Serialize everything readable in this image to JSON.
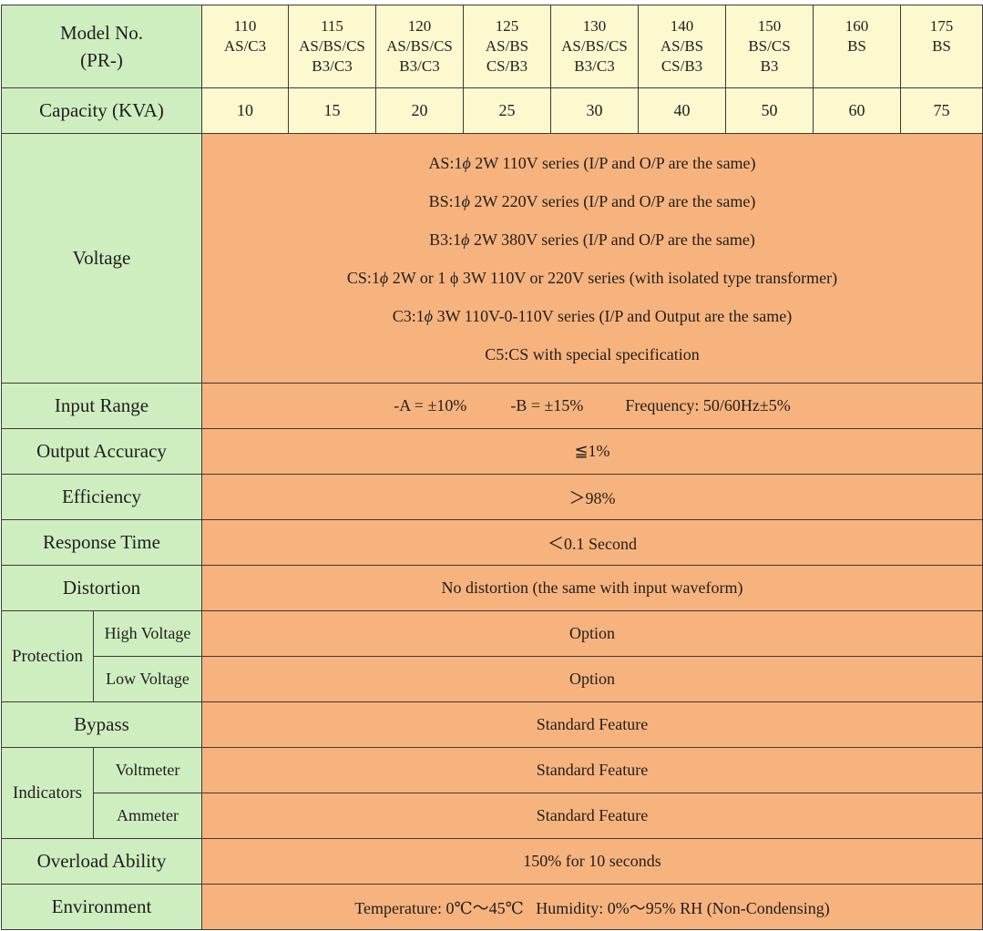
{
  "header": {
    "model_label_line1": "Model No.",
    "model_label_line2": "(PR-)",
    "models": [
      {
        "line1": "110",
        "line2": "AS/C3",
        "line3": ""
      },
      {
        "line1": "115",
        "line2": "AS/BS/CS",
        "line3": "B3/C3"
      },
      {
        "line1": "120",
        "line2": "AS/BS/CS",
        "line3": "B3/C3"
      },
      {
        "line1": "125",
        "line2": "AS/BS",
        "line3": "CS/B3"
      },
      {
        "line1": "130",
        "line2": "AS/BS/CS",
        "line3": "B3/C3"
      },
      {
        "line1": "140",
        "line2": "AS/BS",
        "line3": "CS/B3"
      },
      {
        "line1": "150",
        "line2": "BS/CS",
        "line3": "B3"
      },
      {
        "line1": "160",
        "line2": "BS",
        "line3": ""
      },
      {
        "line1": "175",
        "line2": "BS",
        "line3": ""
      }
    ]
  },
  "capacity": {
    "label": "Capacity (KVA)",
    "values": [
      "10",
      "15",
      "20",
      "25",
      "30",
      "40",
      "50",
      "60",
      "75"
    ]
  },
  "voltage": {
    "label": "Voltage",
    "lines": [
      {
        "prefix": "AS:1",
        "suffix": "2W 110V series (I/P and O/P are the same)"
      },
      {
        "prefix": "BS:1",
        "suffix": "2W 220V series (I/P and O/P are the same)"
      },
      {
        "prefix": "B3:1",
        "suffix": "2W 380V series (I/P and O/P are the same)"
      },
      {
        "prefix": "CS:1",
        "suffix": "2W or 1 ϕ 3W 110V or 220V series (with isolated type transformer)"
      },
      {
        "prefix": "C3:1",
        "suffix": "3W 110V-0-110V series (I/P and Output are the same)"
      },
      {
        "prefix": "C5:CS with special specification",
        "suffix": ""
      }
    ],
    "phi": "ϕ"
  },
  "input_range": {
    "label": "Input Range",
    "a": "-A = ±10%",
    "b": "-B = ±15%",
    "frequency": "Frequency: 50/60Hz±5%"
  },
  "output_accuracy": {
    "label": "Output Accuracy",
    "value": "≦1%"
  },
  "efficiency": {
    "label": "Efficiency",
    "value": "＞98%"
  },
  "response_time": {
    "label": "Response Time",
    "value": "＜0.1 Second"
  },
  "distortion": {
    "label": "Distortion",
    "value": "No distortion (the same with input waveform)"
  },
  "protection": {
    "label": "Protection",
    "high": {
      "label": "High Voltage",
      "value": "Option"
    },
    "low": {
      "label": "Low Voltage",
      "value": "Option"
    }
  },
  "bypass": {
    "label": "Bypass",
    "value": "Standard Feature"
  },
  "indicators": {
    "label": "Indicators",
    "voltmeter": {
      "label": "Voltmeter",
      "value": "Standard Feature"
    },
    "ammeter": {
      "label": "Ammeter",
      "value": "Standard Feature"
    }
  },
  "overload": {
    "label": "Overload Ability",
    "value": "150% for 10 seconds"
  },
  "environment": {
    "label": "Environment",
    "value": "Temperature: 0℃～45℃   Humidity: 0%～95% RH (Non-Condensing)"
  },
  "colors": {
    "label_bg": "#cfeec0",
    "header_bg": "#fdf9cf",
    "value_bg": "#f7b37d",
    "border": "#3a3a3a"
  }
}
